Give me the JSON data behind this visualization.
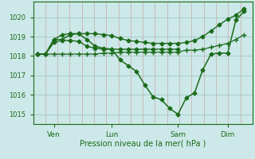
{
  "bg_color": "#cce8e8",
  "line_color": "#1a6b1a",
  "grid_color_h": "#a8cccc",
  "grid_color_v": "#c8a8a8",
  "xlabel": "Pression niveau de la mer( hPa )",
  "xlabel_color": "#1a6b1a",
  "tick_color": "#1a6b1a",
  "ylim": [
    1014.5,
    1020.8
  ],
  "yticks": [
    1015,
    1016,
    1017,
    1018,
    1019,
    1020
  ],
  "xtick_labels": [
    "Ven",
    "Lun",
    "Sam",
    "Dim"
  ],
  "xtick_positions": [
    2,
    9,
    17,
    23
  ],
  "xlim": [
    -0.5,
    26
  ],
  "series": [
    {
      "x": [
        0,
        1,
        2,
        3,
        4,
        5,
        6,
        7,
        8,
        9,
        10,
        11,
        12,
        13,
        14,
        15,
        16,
        17,
        18,
        19,
        20,
        21,
        22,
        23,
        24,
        25
      ],
      "y": [
        1018.1,
        1018.1,
        1018.85,
        1018.85,
        1019.1,
        1019.15,
        1018.85,
        1018.5,
        1018.4,
        1018.35,
        1017.8,
        1017.5,
        1017.2,
        1016.5,
        1015.9,
        1015.75,
        1015.3,
        1015.0,
        1015.85,
        1016.1,
        1017.3,
        1018.1,
        1018.15,
        1018.15,
        1019.85,
        1020.3
      ],
      "marker": "D",
      "markersize": 2.5,
      "linewidth": 1.1
    },
    {
      "x": [
        0,
        1,
        2,
        3,
        4,
        5,
        6,
        7,
        8,
        9,
        10,
        11,
        12,
        13,
        14,
        15,
        16,
        17,
        18,
        19,
        20,
        21,
        22,
        23,
        24,
        25
      ],
      "y": [
        1018.1,
        1018.1,
        1018.85,
        1019.1,
        1019.15,
        1019.15,
        1019.15,
        1019.15,
        1019.1,
        1019.05,
        1018.9,
        1018.8,
        1018.75,
        1018.7,
        1018.65,
        1018.65,
        1018.65,
        1018.65,
        1018.7,
        1018.8,
        1019.0,
        1019.3,
        1019.6,
        1019.9,
        1020.1,
        1020.45
      ],
      "marker": "D",
      "markersize": 2.5,
      "linewidth": 1.0
    },
    {
      "x": [
        0,
        1,
        2,
        3,
        4,
        5,
        6,
        7,
        8,
        9,
        10,
        11,
        12,
        13,
        14,
        15,
        16,
        17,
        18,
        19,
        20,
        21,
        22,
        23,
        24,
        25
      ],
      "y": [
        1018.1,
        1018.1,
        1018.1,
        1018.1,
        1018.1,
        1018.1,
        1018.1,
        1018.1,
        1018.15,
        1018.15,
        1018.2,
        1018.2,
        1018.2,
        1018.2,
        1018.2,
        1018.2,
        1018.2,
        1018.2,
        1018.3,
        1018.3,
        1018.35,
        1018.45,
        1018.55,
        1018.65,
        1018.85,
        1019.1
      ],
      "marker": "+",
      "markersize": 4,
      "linewidth": 0.9
    },
    {
      "x": [
        0,
        1,
        2,
        3,
        4,
        5,
        6,
        7,
        8,
        9,
        10,
        11,
        12,
        13,
        14,
        15,
        16,
        17
      ],
      "y": [
        1018.1,
        1018.1,
        1018.7,
        1018.8,
        1018.8,
        1018.75,
        1018.5,
        1018.4,
        1018.35,
        1018.35,
        1018.35,
        1018.35,
        1018.35,
        1018.35,
        1018.35,
        1018.35,
        1018.35,
        1018.35
      ],
      "marker": "D",
      "markersize": 2.5,
      "linewidth": 1.0
    }
  ],
  "hgrid_positions": [
    1015,
    1016,
    1017,
    1018,
    1019,
    1020
  ]
}
